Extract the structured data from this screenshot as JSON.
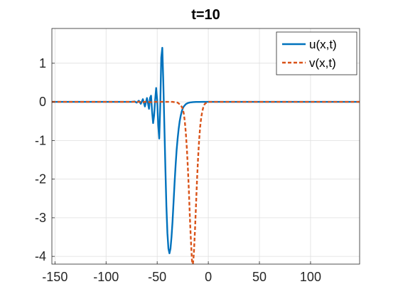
{
  "chart_data": {
    "type": "line",
    "title": "t=10",
    "xlabel": "",
    "ylabel": "",
    "xlim": [
      -153,
      148
    ],
    "ylim": [
      -4.2,
      1.9
    ],
    "grid": true,
    "legend_position": "top-right",
    "x_ticks": [
      -150,
      -100,
      -50,
      0,
      50,
      100
    ],
    "y_ticks": [
      -4,
      -3,
      -2,
      -1,
      0,
      1
    ],
    "x_tick_labels": [
      "-150",
      "-100",
      "-50",
      "0",
      "50",
      "100"
    ],
    "y_tick_labels": [
      "-4",
      "-3",
      "-2",
      "-1",
      "0",
      "1"
    ],
    "series": [
      {
        "name": "u(x,t)",
        "color": "#0072BD",
        "style": "solid",
        "x": [
          -153,
          -75,
          -72,
          -70,
          -68,
          -66,
          -64,
          -62,
          -60,
          -58,
          -57,
          -56,
          -55,
          -54,
          -53,
          -52,
          -51,
          -50,
          -49,
          -48,
          -47,
          -46,
          -45,
          -44,
          -43,
          -42,
          -41,
          -40,
          -39,
          -38,
          -37,
          -36,
          -35,
          -34,
          -33,
          -32,
          -31,
          -30,
          -29,
          -28,
          -27,
          -26,
          -25,
          -24,
          -22,
          -20,
          -18,
          -15,
          -12,
          -9,
          -5,
          0,
          148
        ],
        "y": [
          0,
          0,
          0.01,
          -0.02,
          0.03,
          -0.05,
          0.07,
          -0.12,
          0.1,
          -0.18,
          0.1,
          0.16,
          -0.25,
          -0.55,
          -0.35,
          0.05,
          0.36,
          0.05,
          -0.6,
          -0.95,
          -0.1,
          1.15,
          1.4,
          0.5,
          -0.6,
          -1.7,
          -2.7,
          -3.4,
          -3.8,
          -3.92,
          -3.8,
          -3.5,
          -3.1,
          -2.6,
          -2.1,
          -1.65,
          -1.25,
          -0.95,
          -0.7,
          -0.5,
          -0.36,
          -0.25,
          -0.17,
          -0.12,
          -0.06,
          -0.03,
          -0.015,
          -0.006,
          -0.002,
          -0.001,
          0,
          0,
          0
        ]
      },
      {
        "name": "v(x,t)",
        "color": "#D95319",
        "style": "dashed",
        "x": [
          -153,
          -70,
          -67,
          -64,
          -60,
          -57,
          -54,
          -50,
          -45,
          -35,
          -30,
          -27,
          -25,
          -24,
          -23,
          -22,
          -21,
          -20,
          -19,
          -18,
          -17,
          -16,
          -15.5,
          -15,
          -14.5,
          -14,
          -13,
          -12,
          -11,
          -10,
          -9,
          -8,
          -7,
          -6,
          -5,
          -4,
          -3,
          0,
          148
        ],
        "y": [
          0,
          0,
          0,
          -0.01,
          0.01,
          -0.01,
          0,
          0,
          0,
          0,
          -0.02,
          -0.08,
          -0.18,
          -0.3,
          -0.5,
          -0.8,
          -1.2,
          -1.7,
          -2.3,
          -3.0,
          -3.6,
          -4.1,
          -4.2,
          -4.18,
          -4.05,
          -3.85,
          -3.3,
          -2.65,
          -2.0,
          -1.45,
          -1.0,
          -0.65,
          -0.42,
          -0.26,
          -0.15,
          -0.08,
          -0.04,
          0,
          0
        ]
      }
    ]
  }
}
